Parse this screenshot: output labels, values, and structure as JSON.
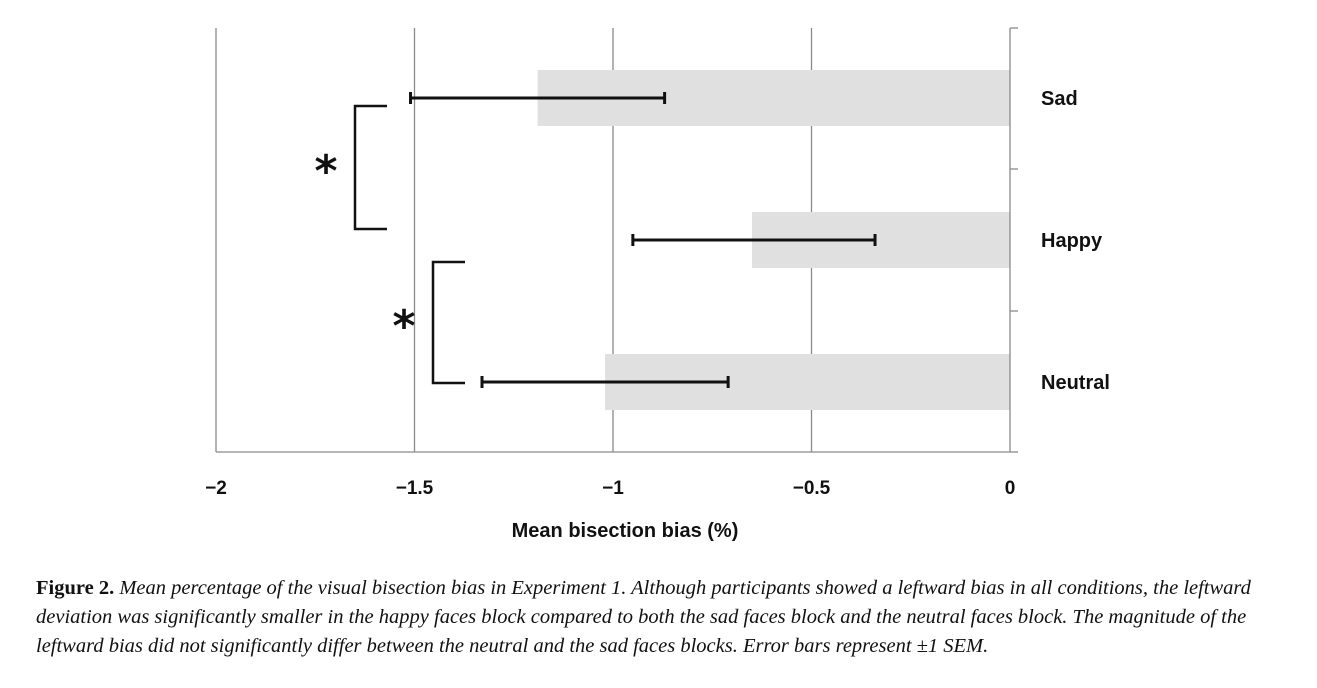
{
  "chart_data": {
    "type": "bar",
    "orientation": "horizontal",
    "categories": [
      "Sad",
      "Happy",
      "Neutral"
    ],
    "values": [
      -1.19,
      -0.65,
      -1.02
    ],
    "error_bars": [
      {
        "low": -1.51,
        "high": -0.87
      },
      {
        "low": -0.95,
        "high": -0.34
      },
      {
        "low": -1.33,
        "high": -0.71
      }
    ],
    "xlabel": "Mean bisection bias (%)",
    "xlim": [
      -2,
      0
    ],
    "xticks": [
      -2,
      -1.5,
      -1,
      -0.5,
      0
    ],
    "xtick_labels": [
      "−2",
      "−1.5",
      "−1",
      "−0.5",
      "0"
    ],
    "grid": "vertical",
    "bar_color": "#e0e0e0",
    "significance": [
      {
        "between": [
          "Sad",
          "Happy"
        ],
        "label": "*"
      },
      {
        "between": [
          "Happy",
          "Neutral"
        ],
        "label": "*"
      }
    ]
  },
  "caption": {
    "lead": "Figure 2.",
    "text": "Mean percentage of the visual bisection bias in Experiment 1. Although participants showed a leftward bias in all conditions, the leftward deviation was significantly smaller in the happy faces block compared to both the sad faces block and the neutral faces block. The magnitude of the leftward bias did not significantly differ between the neutral and the sad faces blocks. Error bars represent ±1 SEM."
  }
}
